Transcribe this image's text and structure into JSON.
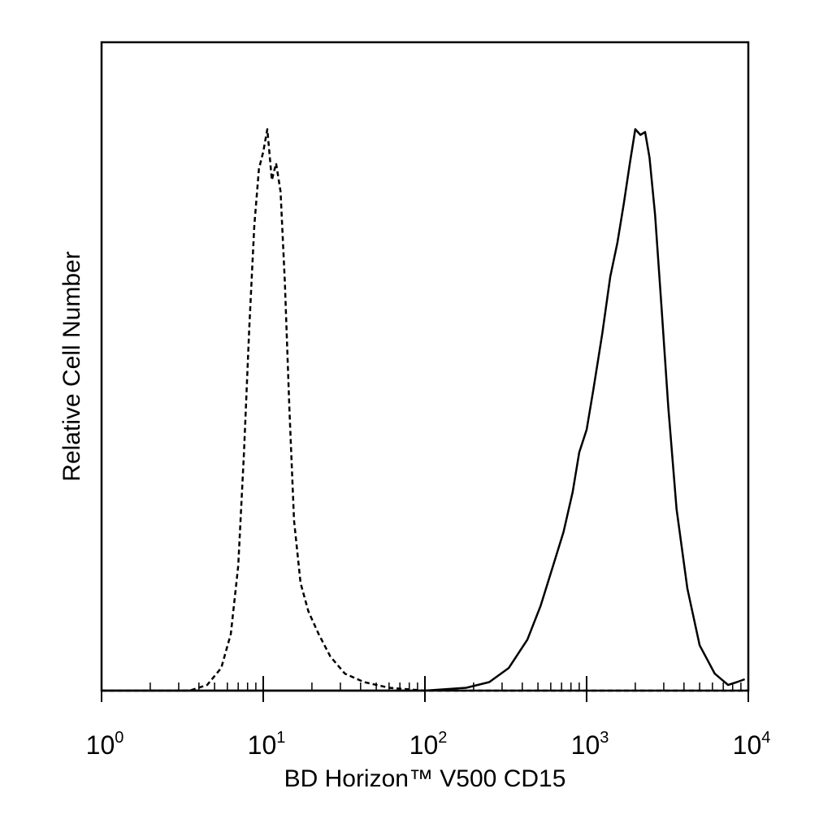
{
  "chart_data": {
    "type": "line",
    "title": "",
    "xlabel": "BD Horizon™ V500 CD15",
    "ylabel": "Relative Cell Number",
    "x_scale": "log",
    "xlim": [
      1,
      10000
    ],
    "ylim": [
      0,
      100
    ],
    "x_ticks": [
      {
        "base": "10",
        "exp": "0",
        "value": 1
      },
      {
        "base": "10",
        "exp": "1",
        "value": 10
      },
      {
        "base": "10",
        "exp": "2",
        "value": 100
      },
      {
        "base": "10",
        "exp": "3",
        "value": 1000
      },
      {
        "base": "10",
        "exp": "4",
        "value": 10000
      }
    ],
    "grid": false,
    "legend": "none",
    "series": [
      {
        "style": "dashed",
        "color": "#000000",
        "x": [
          1,
          3.5,
          4.5,
          5.5,
          6.3,
          7.0,
          7.6,
          8.2,
          8.8,
          9.4,
          10,
          10.6,
          11.3,
          12.0,
          12.8,
          13.6,
          14.5,
          15.5,
          17.0,
          19.0,
          22.0,
          26.0,
          32.0,
          42.0,
          60.0,
          100,
          300,
          1000,
          10000
        ],
        "y": [
          0,
          0,
          1,
          4,
          10,
          22,
          42,
          64,
          82,
          92,
          95,
          99,
          90,
          93,
          88,
          72,
          50,
          30,
          19,
          14,
          10,
          6,
          3,
          1.5,
          0.5,
          0,
          0,
          0,
          0
        ]
      },
      {
        "style": "solid",
        "color": "#000000",
        "x": [
          1,
          100,
          180,
          250,
          330,
          430,
          520,
          620,
          720,
          820,
          900,
          1000,
          1100,
          1250,
          1400,
          1550,
          1700,
          1850,
          2000,
          2150,
          2300,
          2450,
          2650,
          2900,
          3200,
          3600,
          4200,
          5000,
          6200,
          7500,
          8500,
          9500
        ],
        "y": [
          0,
          0,
          0.5,
          1.5,
          4,
          9,
          15,
          22,
          28,
          35,
          42,
          46,
          53,
          63,
          73,
          79,
          86,
          93,
          99,
          98,
          98.5,
          94,
          84,
          68,
          50,
          32,
          18,
          8,
          3,
          1,
          1.5,
          2
        ]
      }
    ]
  }
}
